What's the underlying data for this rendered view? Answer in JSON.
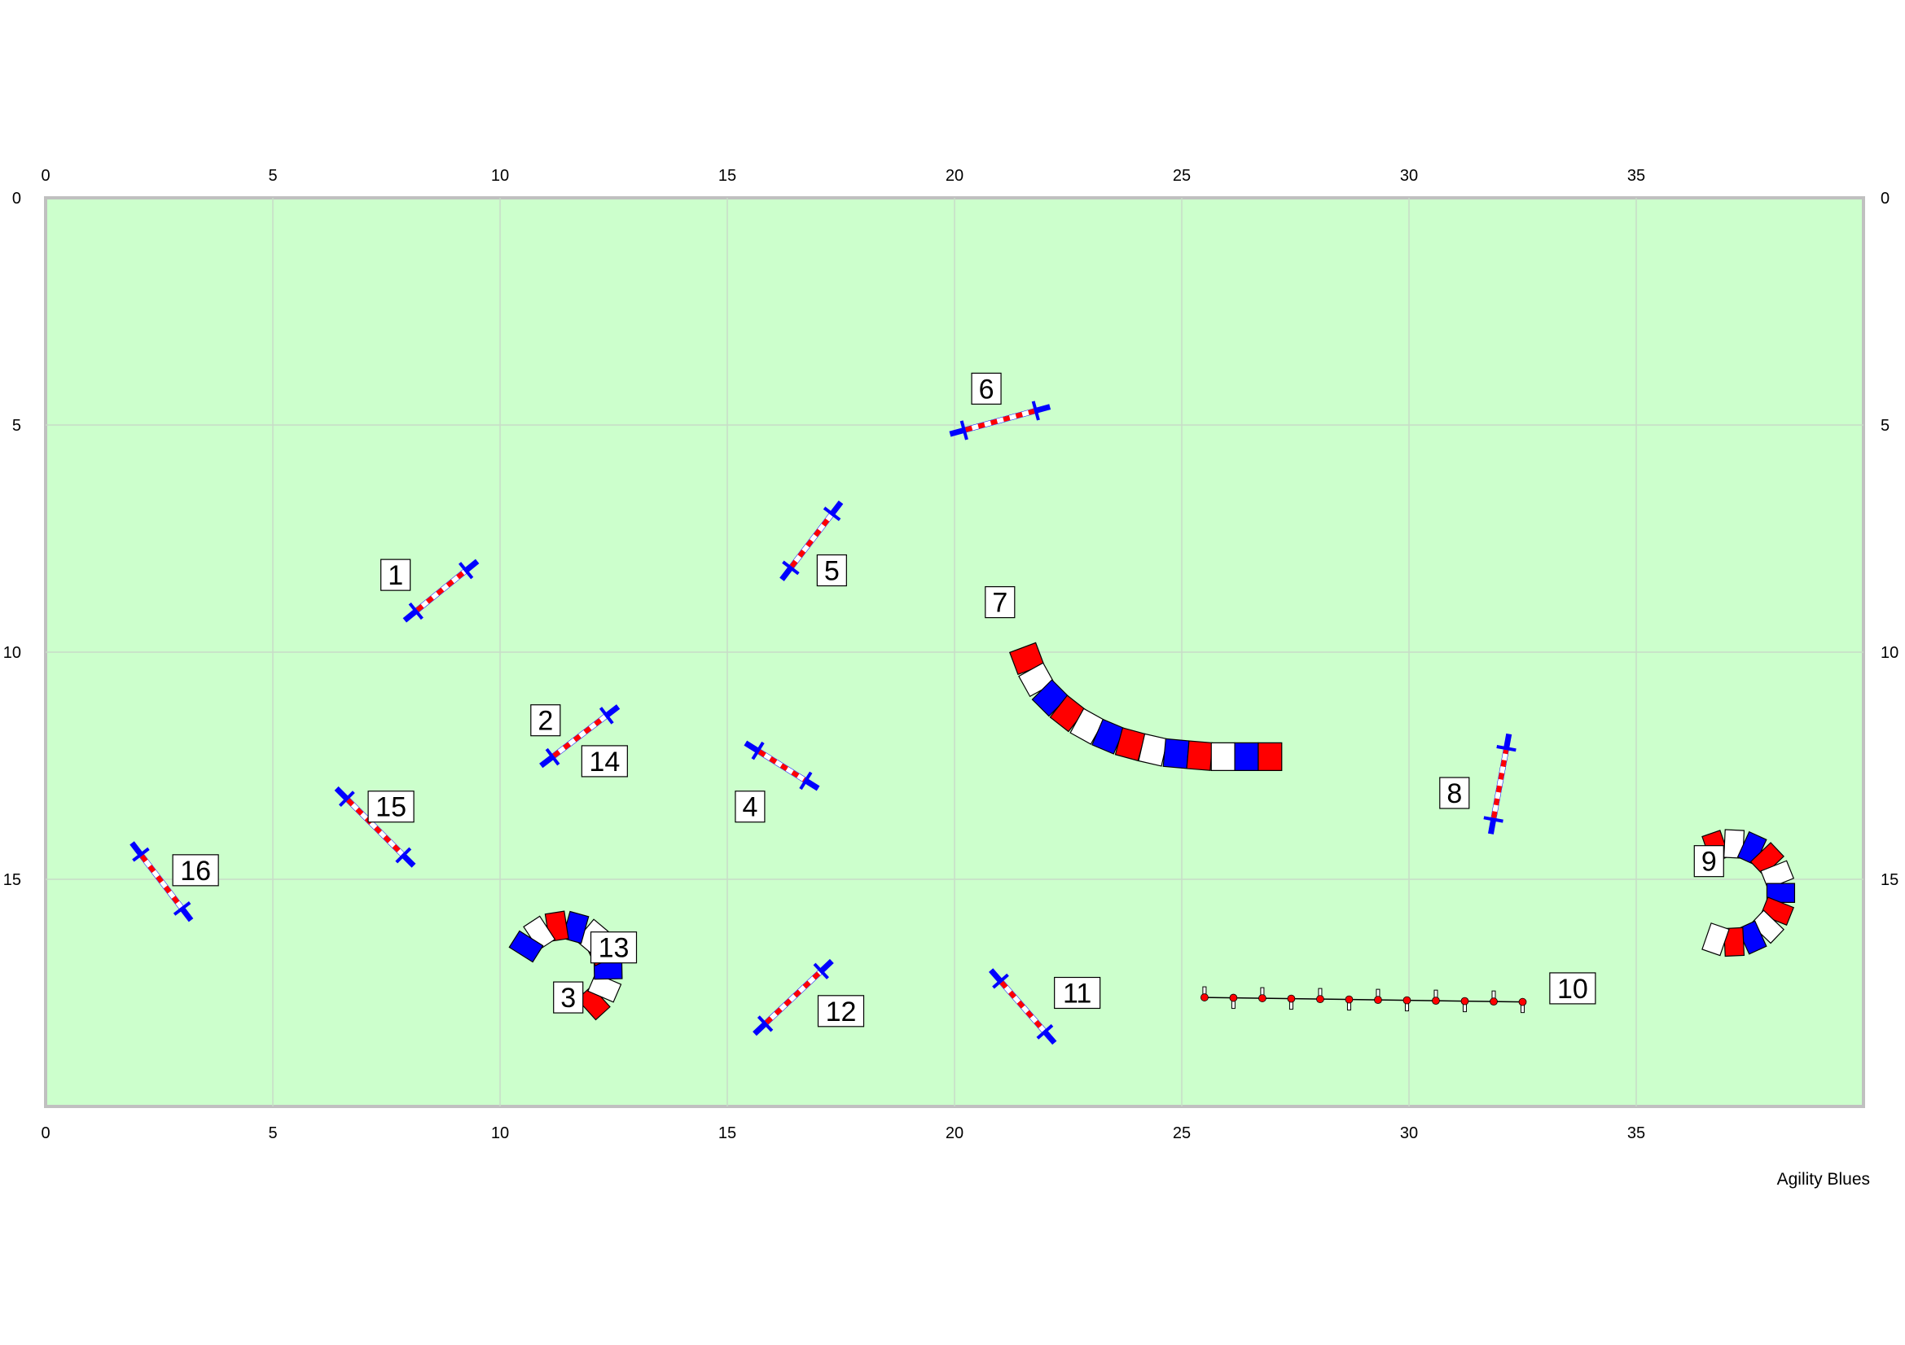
{
  "credit": "Agility Blues",
  "colors": {
    "arena_fill": "#ccffcc",
    "arena_border": "#c0c0c0",
    "grid": "#c8dcc8",
    "pole_red": "#ff0000",
    "pole_blue": "#0000ff",
    "tunnel_red": "#ff0000",
    "tunnel_blue": "#0000ff",
    "tunnel_white": "#ffffff",
    "outline": "#000000",
    "weave_dot": "#ff0000"
  },
  "arena": {
    "width_m": 40,
    "height_m": 20,
    "x_ticks": [
      "0",
      "5",
      "10",
      "15",
      "20",
      "25",
      "30",
      "35"
    ],
    "y_ticks": [
      "0",
      "5",
      "10",
      "15"
    ]
  },
  "obstacles": [
    {
      "kind": "jump",
      "number": "1",
      "from": [
        7.9,
        9.3
      ],
      "to": [
        9.5,
        8.0
      ],
      "label_at": [
        7.7,
        8.3
      ]
    },
    {
      "kind": "jump",
      "number": "2",
      "from": [
        10.9,
        12.5
      ],
      "to": [
        12.6,
        11.2
      ],
      "label_at": [
        11.0,
        11.5
      ]
    },
    {
      "kind": "tunnel",
      "number": "3",
      "center": [
        11.4,
        17.0
      ],
      "radius": 1.0,
      "start_deg": -60,
      "end_deg": 160,
      "segments": 9,
      "label_at": [
        11.5,
        17.6
      ]
    },
    {
      "kind": "jump",
      "number": "13",
      "label_at": [
        12.5,
        16.5
      ]
    },
    {
      "kind": "jump",
      "number": "4",
      "from": [
        15.4,
        12.0
      ],
      "to": [
        17.0,
        13.0
      ],
      "label_at": [
        15.5,
        13.4
      ]
    },
    {
      "kind": "jump",
      "number": "5",
      "from": [
        16.2,
        8.4
      ],
      "to": [
        17.5,
        6.7
      ],
      "label_at": [
        17.3,
        8.2
      ]
    },
    {
      "kind": "jump",
      "number": "6",
      "from": [
        19.9,
        5.2
      ],
      "to": [
        22.1,
        4.6
      ],
      "label_at": [
        20.7,
        4.2
      ]
    },
    {
      "kind": "tunnel_curve",
      "number": "7",
      "points": [
        [
          21.5,
          9.9
        ],
        [
          21.8,
          10.7
        ],
        [
          22.5,
          11.4
        ],
        [
          23.4,
          11.9
        ],
        [
          24.5,
          12.2
        ],
        [
          25.6,
          12.3
        ],
        [
          27.2,
          12.3
        ]
      ],
      "segments": 13,
      "label_at": [
        21.0,
        8.9
      ]
    },
    {
      "kind": "jump",
      "number": "8",
      "from": [
        31.8,
        14.0
      ],
      "to": [
        32.2,
        11.8
      ],
      "label_at": [
        31.0,
        13.1
      ]
    },
    {
      "kind": "tunnel",
      "number": "9",
      "center": [
        37.1,
        15.3
      ],
      "radius": 1.1,
      "start_deg": 120,
      "end_deg": -120,
      "segments": 11,
      "label_at": [
        36.6,
        14.6
      ]
    },
    {
      "kind": "weave",
      "number": "10",
      "from": [
        25.5,
        17.6
      ],
      "to": [
        32.5,
        17.7
      ],
      "poles": 12,
      "label_at": [
        33.6,
        17.4
      ]
    },
    {
      "kind": "jump",
      "number": "11",
      "from": [
        20.8,
        17.0
      ],
      "to": [
        22.2,
        18.6
      ],
      "label_at": [
        22.7,
        17.5
      ]
    },
    {
      "kind": "jump",
      "number": "12",
      "from": [
        15.6,
        18.4
      ],
      "to": [
        17.3,
        16.8
      ],
      "label_at": [
        17.5,
        17.9
      ]
    },
    {
      "kind": "jump",
      "number": "14",
      "label_at": [
        12.3,
        12.4
      ]
    },
    {
      "kind": "jump",
      "number": "15",
      "from": [
        6.4,
        13.0
      ],
      "to": [
        8.1,
        14.7
      ],
      "label_at": [
        7.6,
        13.4
      ]
    },
    {
      "kind": "jump",
      "number": "16",
      "from": [
        1.9,
        14.2
      ],
      "to": [
        3.2,
        15.9
      ],
      "label_at": [
        3.3,
        14.8
      ]
    }
  ]
}
